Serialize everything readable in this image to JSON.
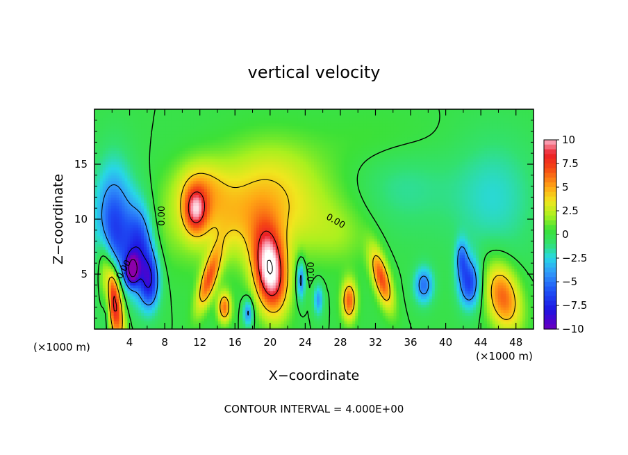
{
  "chart_data": {
    "type": "heatmap",
    "title": "vertical velocity",
    "xlabel": "X−coordinate",
    "ylabel": "Z−coordinate",
    "x_unit": "(×1000 m)",
    "y_unit": "(×1000 m)",
    "x_ticks": [
      4,
      8,
      12,
      16,
      20,
      24,
      28,
      32,
      36,
      40,
      44,
      48
    ],
    "y_ticks": [
      5,
      10,
      15
    ],
    "xlim": [
      0,
      50
    ],
    "ylim": [
      0,
      20
    ],
    "footer": "CONTOUR INTERVAL = 4.000E+00",
    "contour_interval": 4.0,
    "colorbar": {
      "ticks": [
        "10",
        "7.5",
        "5",
        "2.5",
        "0",
        "−2.5",
        "−5",
        "−7.5",
        "−10"
      ],
      "range": [
        -10,
        10
      ]
    },
    "contour_labels": [
      {
        "text": "0.00",
        "x": 8.0,
        "y": 10.3,
        "rot": -90
      },
      {
        "text": "0.00",
        "x": 27.3,
        "y": 9.6,
        "rot": 30
      },
      {
        "text": "0.00",
        "x": 25.0,
        "y": 5.2,
        "rot": -90
      },
      {
        "text": "0.00",
        "x": 3.6,
        "y": 5.3,
        "rot": -60
      }
    ],
    "features": [
      {
        "x": 2.0,
        "z": 3.2,
        "sx": 0.75,
        "sz": 2.8,
        "tilt": -0.18,
        "amp": 11.5
      },
      {
        "x": 20.0,
        "z": 5.3,
        "sx": 1.3,
        "sz": 2.6,
        "tilt": -0.1,
        "amp": 11.5
      },
      {
        "x": 11.5,
        "z": 10.8,
        "sx": 0.9,
        "sz": 1.4,
        "tilt": 0.0,
        "amp": 6.5
      },
      {
        "x": 17.5,
        "z": 10.3,
        "sx": 6.5,
        "sz": 2.8,
        "tilt": 0.25,
        "amp": 4.2
      },
      {
        "x": 12.0,
        "z": 13.0,
        "sx": 2.0,
        "sz": 1.8,
        "tilt": 0.0,
        "amp": 3.0
      },
      {
        "x": 20.0,
        "z": 14.5,
        "sx": 4.0,
        "sz": 2.5,
        "tilt": 0.0,
        "amp": 2.0
      },
      {
        "x": 13.0,
        "z": 4.5,
        "sx": 0.7,
        "sz": 2.0,
        "tilt": 0.35,
        "amp": 6.5
      },
      {
        "x": 14.8,
        "z": 2.0,
        "sx": 0.55,
        "sz": 1.0,
        "tilt": 0.0,
        "amp": 6.0
      },
      {
        "x": 29.0,
        "z": 2.6,
        "sx": 0.6,
        "sz": 1.3,
        "tilt": 0.0,
        "amp": 6.5
      },
      {
        "x": 32.7,
        "z": 4.6,
        "sx": 0.7,
        "sz": 1.9,
        "tilt": -0.3,
        "amp": 7.0
      },
      {
        "x": 46.5,
        "z": 3.0,
        "sx": 1.4,
        "sz": 2.2,
        "tilt": -0.2,
        "amp": 6.5
      },
      {
        "x": 5.2,
        "z": 7.5,
        "sx": 1.1,
        "sz": 2.8,
        "tilt": 0.0,
        "amp": -6.5
      },
      {
        "x": 2.2,
        "z": 9.0,
        "sx": 1.6,
        "sz": 4.0,
        "tilt": 0.0,
        "amp": -7.0
      },
      {
        "x": 4.3,
        "z": 5.4,
        "sx": 0.5,
        "sz": 0.9,
        "tilt": 0.0,
        "amp": -9.5
      },
      {
        "x": 6.3,
        "z": 4.3,
        "sx": 0.8,
        "sz": 1.8,
        "tilt": 0.0,
        "amp": -6.5
      },
      {
        "x": 1.5,
        "z": 3.0,
        "sx": 0.4,
        "sz": 2.0,
        "tilt": 0.0,
        "amp": -4.0
      },
      {
        "x": 42.7,
        "z": 4.2,
        "sx": 0.9,
        "sz": 1.6,
        "tilt": 0.0,
        "amp": -6.5
      },
      {
        "x": 41.8,
        "z": 6.5,
        "sx": 0.5,
        "sz": 1.2,
        "tilt": 0.0,
        "amp": -4.0
      },
      {
        "x": 37.5,
        "z": 4.0,
        "sx": 0.8,
        "sz": 1.2,
        "tilt": 0.0,
        "amp": -5.0
      },
      {
        "x": 23.5,
        "z": 4.5,
        "sx": 0.35,
        "sz": 1.3,
        "tilt": 0.0,
        "amp": -5.0
      },
      {
        "x": 17.5,
        "z": 1.5,
        "sx": 0.4,
        "sz": 0.9,
        "tilt": 0.0,
        "amp": -4.5
      },
      {
        "x": 25.5,
        "z": 2.7,
        "sx": 0.4,
        "sz": 1.0,
        "tilt": 0.0,
        "amp": -4.0
      },
      {
        "x": 45.5,
        "z": 12.0,
        "sx": 3.5,
        "sz": 4.0,
        "tilt": 0.0,
        "amp": -2.2
      },
      {
        "x": 35.0,
        "z": 13.0,
        "sx": 4.0,
        "sz": 3.0,
        "tilt": 0.0,
        "amp": -1.6
      },
      {
        "x": 28.0,
        "z": 8.5,
        "sx": 2.5,
        "sz": 2.0,
        "tilt": 0.0,
        "amp": 1.2
      },
      {
        "x": 33.0,
        "z": 17.0,
        "sx": 5.0,
        "sz": 2.0,
        "tilt": 0.0,
        "amp": 0.8
      }
    ]
  }
}
